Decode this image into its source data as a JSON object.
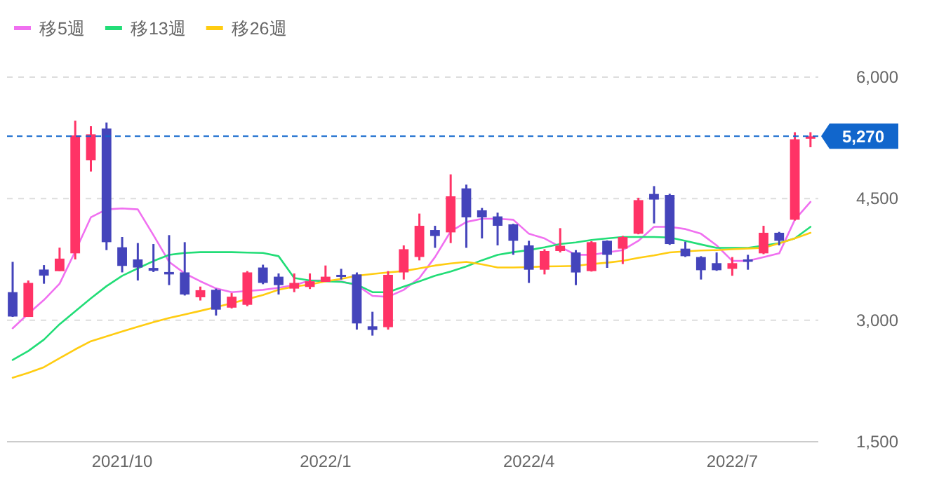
{
  "chart_data": {
    "type": "candlestick",
    "categories": [
      null,
      null,
      null,
      null,
      null,
      null,
      null,
      "2021/10",
      null,
      null,
      null,
      null,
      null,
      null,
      null,
      null,
      null,
      null,
      null,
      null,
      "2022/1",
      null,
      null,
      null,
      null,
      null,
      null,
      null,
      null,
      null,
      null,
      null,
      null,
      "2022/4",
      null,
      null,
      null,
      null,
      null,
      null,
      null,
      null,
      null,
      null,
      null,
      null,
      "2022/7",
      null,
      null,
      null,
      null,
      null
    ],
    "ohlc": [
      [
        3346,
        3720,
        3040,
        3045
      ],
      [
        3040,
        3490,
        3040,
        3460
      ],
      [
        3625,
        3680,
        3450,
        3550
      ],
      [
        3605,
        3895,
        3605,
        3760
      ],
      [
        3825,
        5463,
        3750,
        5280
      ],
      [
        4975,
        5394,
        4835,
        5295
      ],
      [
        5365,
        5440,
        3865,
        3963
      ],
      [
        3900,
        4027,
        3590,
        3670
      ],
      [
        3750,
        3952,
        3490,
        3650
      ],
      [
        3645,
        3940,
        3595,
        3610
      ],
      [
        3595,
        4050,
        3433,
        3565
      ],
      [
        3590,
        3963,
        3305,
        3317
      ],
      [
        3283,
        3415,
        3243,
        3370
      ],
      [
        3375,
        3390,
        3057,
        3130
      ],
      [
        3155,
        3334,
        3145,
        3290
      ],
      [
        3190,
        3606,
        3173,
        3590
      ],
      [
        3650,
        3685,
        3444,
        3460
      ],
      [
        3537,
        3577,
        3317,
        3433
      ],
      [
        3390,
        3577,
        3346,
        3460
      ],
      [
        3410,
        3577,
        3385,
        3480
      ],
      [
        3473,
        3675,
        3473,
        3537
      ],
      [
        3560,
        3634,
        3502,
        3537
      ],
      [
        3565,
        3589,
        2884,
        2960
      ],
      [
        2925,
        3104,
        2810,
        2880
      ],
      [
        2914,
        3606,
        2884,
        3560
      ],
      [
        3590,
        3923,
        3502,
        3876
      ],
      [
        3780,
        4316,
        3738,
        4165
      ],
      [
        4113,
        4165,
        3893,
        4039
      ],
      [
        4084,
        4800,
        3952,
        4529
      ],
      [
        4627,
        4673,
        3893,
        4269
      ],
      [
        4356,
        4385,
        4009,
        4269
      ],
      [
        4281,
        4327,
        3923,
        4165
      ],
      [
        4183,
        4190,
        3807,
        3980
      ],
      [
        3923,
        3980,
        3460,
        3623
      ],
      [
        3623,
        3876,
        3565,
        3854
      ],
      [
        3854,
        4136,
        3836,
        3918
      ],
      [
        3836,
        3865,
        3433,
        3589
      ],
      [
        3606,
        3975,
        3600,
        3963
      ],
      [
        3980,
        3985,
        3646,
        3807
      ],
      [
        3883,
        4040,
        3693,
        4027
      ],
      [
        4067,
        4511,
        4060,
        4482
      ],
      [
        4558,
        4655,
        4195,
        4489
      ],
      [
        4546,
        4560,
        3930,
        3940
      ],
      [
        3883,
        3970,
        3780,
        3790
      ],
      [
        3779,
        3790,
        3502,
        3617
      ],
      [
        3704,
        3836,
        3610,
        3617
      ],
      [
        3634,
        3779,
        3548,
        3704
      ],
      [
        3750,
        3807,
        3623,
        3721
      ],
      [
        3825,
        4165,
        3815,
        4079
      ],
      [
        4079,
        4090,
        3923,
        3980
      ],
      [
        4240,
        5320,
        4230,
        5233
      ],
      [
        5240,
        5320,
        5135,
        5270
      ]
    ],
    "colors": [
      "#4444bb",
      "#ff3366",
      "#4444bb",
      "#ff3366",
      "#ff3366",
      "#ff3366",
      "#4444bb",
      "#4444bb",
      "#4444bb",
      "#4444bb",
      "#4444bb",
      "#4444bb",
      "#ff3366",
      "#4444bb",
      "#ff3366",
      "#ff3366",
      "#4444bb",
      "#4444bb",
      "#ff3366",
      "#ff3366",
      "#ff3366",
      "#4444bb",
      "#4444bb",
      "#4444bb",
      "#ff3366",
      "#ff3366",
      "#ff3366",
      "#4444bb",
      "#ff3366",
      "#4444bb",
      "#4444bb",
      "#4444bb",
      "#4444bb",
      "#4444bb",
      "#ff3366",
      "#ff3366",
      "#4444bb",
      "#ff3366",
      "#4444bb",
      "#ff3366",
      "#ff3366",
      "#4444bb",
      "#4444bb",
      "#4444bb",
      "#4444bb",
      "#4444bb",
      "#ff3366",
      "#4444bb",
      "#ff3366",
      "#4444bb",
      "#ff3366",
      "#ff3366"
    ],
    "series": [
      {
        "name": "移5週",
        "type": "line",
        "color": "#f070f0",
        "values": [
          2900,
          3080,
          3250,
          3450,
          3850,
          4270,
          4368,
          4380,
          4368,
          4050,
          3720,
          3577,
          3480,
          3392,
          3346,
          3360,
          3375,
          3400,
          3433,
          3490,
          3490,
          3480,
          3433,
          3300,
          3288,
          3375,
          3520,
          3779,
          4096,
          4212,
          4252,
          4252,
          4240,
          4067,
          4009,
          3905,
          3807,
          3807,
          3836,
          3865,
          3980,
          4153,
          4153,
          4125,
          4067,
          3923,
          3732,
          3732,
          3779,
          3825,
          4240,
          4460
        ]
      },
      {
        "name": "移13週",
        "type": "line",
        "color": "#22dd77",
        "values": [
          2510,
          2620,
          2760,
          2950,
          3110,
          3270,
          3420,
          3548,
          3640,
          3730,
          3807,
          3830,
          3840,
          3840,
          3840,
          3835,
          3830,
          3790,
          3520,
          3490,
          3480,
          3473,
          3440,
          3346,
          3346,
          3415,
          3480,
          3548,
          3600,
          3663,
          3740,
          3807,
          3840,
          3865,
          3900,
          3940,
          3960,
          3990,
          4010,
          4027,
          4027,
          4027,
          4020,
          3980,
          3935,
          3893,
          3893,
          3893,
          3920,
          3952,
          4009,
          4153
        ]
      },
      {
        "name": "移26週",
        "type": "line",
        "color": "#ffcc11",
        "values": [
          2290,
          2350,
          2420,
          2530,
          2640,
          2740,
          2800,
          2860,
          2920,
          2975,
          3028,
          3070,
          3115,
          3161,
          3210,
          3260,
          3310,
          3375,
          3415,
          3440,
          3480,
          3510,
          3548,
          3570,
          3590,
          3606,
          3640,
          3675,
          3700,
          3720,
          3690,
          3650,
          3650,
          3655,
          3663,
          3665,
          3670,
          3693,
          3710,
          3732,
          3770,
          3800,
          3836,
          3850,
          3860,
          3865,
          3875,
          3885,
          3893,
          3950,
          4010,
          4079
        ]
      }
    ],
    "ylim": [
      1500,
      6000
    ],
    "yticks": [
      {
        "value": 1500,
        "label": "1,500"
      },
      {
        "value": 3000,
        "label": "3,000"
      },
      {
        "value": 4500,
        "label": "4,500"
      },
      {
        "value": 6000,
        "label": "6,000"
      }
    ],
    "ref_lines": [
      {
        "axis": "y",
        "value": 5270,
        "label": "5,270",
        "color": "#1166cc",
        "line_style": "dashed"
      }
    ],
    "grid": "y",
    "legend": "top left"
  }
}
